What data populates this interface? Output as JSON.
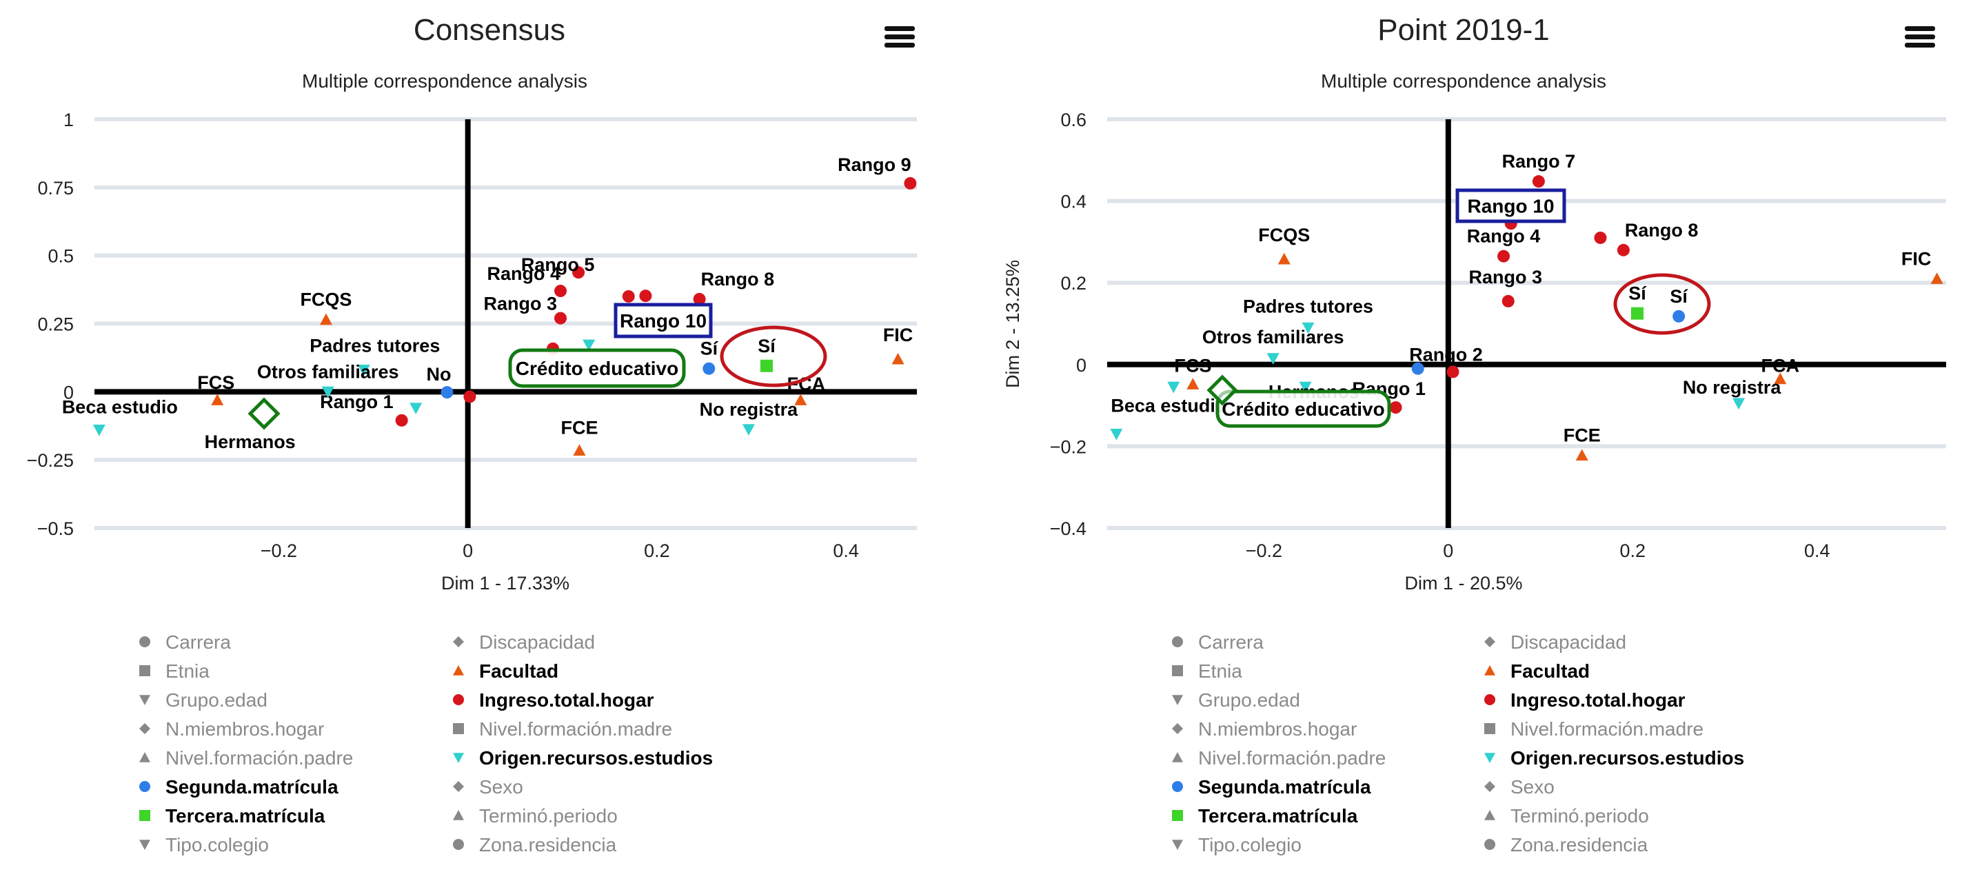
{
  "chart_data": [
    {
      "type": "scatter",
      "title": "Consensus",
      "subtitle": "Multiple correspondence analysis",
      "xlabel": "Dim 1 - 17.33%",
      "ylabel": "",
      "xlim": [
        -0.395,
        0.475
      ],
      "ylim": [
        -0.5,
        1.0
      ],
      "xticks": [
        -0.2,
        0,
        0.2,
        0.4
      ],
      "xtick_labels": [
        "−0.2",
        "0",
        "0.2",
        "0.4"
      ],
      "yticks": [
        -0.5,
        -0.25,
        0,
        0.25,
        0.5,
        0.75,
        1
      ],
      "ytick_labels": [
        "−0.5",
        "−0.25",
        "0",
        "0.25",
        "0.5",
        "0.75",
        "1"
      ],
      "grid": true,
      "points": [
        {
          "label": "Rango 9",
          "group": "Ingreso.total.hogar",
          "x": 0.468,
          "y": 0.765
        },
        {
          "label": "Rango 5",
          "group": "Ingreso.total.hogar",
          "x": 0.117,
          "y": 0.438
        },
        {
          "label": "Rango 4",
          "group": "Ingreso.total.hogar",
          "x": 0.098,
          "y": 0.37
        },
        {
          "label": "",
          "group": "Ingreso.total.hogar",
          "x": 0.17,
          "y": 0.35
        },
        {
          "label": "",
          "group": "Ingreso.total.hogar",
          "x": 0.188,
          "y": 0.352
        },
        {
          "label": "Rango 8",
          "group": "Ingreso.total.hogar",
          "x": 0.245,
          "y": 0.34
        },
        {
          "label": "Rango 3",
          "group": "Ingreso.total.hogar",
          "x": 0.098,
          "y": 0.27
        },
        {
          "label": "",
          "group": "Ingreso.total.hogar",
          "x": 0.09,
          "y": 0.158
        },
        {
          "label": "Rango 1",
          "group": "Ingreso.total.hogar",
          "x": -0.07,
          "y": -0.105
        },
        {
          "label": "",
          "group": "Ingreso.total.hogar",
          "x": 0.002,
          "y": -0.018
        },
        {
          "label": "FCQS",
          "group": "Facultad",
          "x": -0.15,
          "y": 0.265
        },
        {
          "label": "FCS",
          "group": "Facultad",
          "x": -0.265,
          "y": -0.03
        },
        {
          "label": "FIC",
          "group": "Facultad",
          "x": 0.455,
          "y": 0.12
        },
        {
          "label": "FCA",
          "group": "Facultad",
          "x": 0.352,
          "y": -0.03
        },
        {
          "label": "FCE",
          "group": "Facultad",
          "x": 0.118,
          "y": -0.215
        },
        {
          "label": "Padres tutores",
          "group": "Origen.recursos.estudios",
          "x": -0.11,
          "y": 0.08
        },
        {
          "label": "Otros familiares",
          "group": "Origen.recursos.estudios",
          "x": -0.148,
          "y": 0.0
        },
        {
          "label": "Beca estudio",
          "group": "Origen.recursos.estudios",
          "x": -0.39,
          "y": -0.14
        },
        {
          "label": "No registra",
          "group": "Origen.recursos.estudios",
          "x": 0.297,
          "y": -0.138
        },
        {
          "label": "Crédito educativo",
          "group": "Origen.recursos.estudios",
          "x": 0.128,
          "y": 0.172
        },
        {
          "label": "",
          "group": "Origen.recursos.estudios",
          "x": -0.055,
          "y": -0.06
        },
        {
          "label": "Sí",
          "group": "Segunda.matrícula",
          "x": 0.255,
          "y": 0.085
        },
        {
          "label": "No",
          "group": "Segunda.matrícula",
          "x": -0.022,
          "y": -0.002
        },
        {
          "label": "Sí",
          "group": "Tercera.matrícula",
          "x": 0.316,
          "y": 0.095
        },
        {
          "label": "Hermanos",
          "group": "N.miembros.hogar",
          "x": -0.21,
          "y": -0.085
        }
      ],
      "annotations": [
        {
          "type": "box",
          "label": "Rango 10",
          "color": "#1a1f9c"
        },
        {
          "type": "rounded-box",
          "label": "Crédito educativo",
          "color": "#137a13"
        },
        {
          "type": "ellipse",
          "color": "#c0161c"
        },
        {
          "type": "diamond",
          "color": "#137a13"
        }
      ]
    },
    {
      "type": "scatter",
      "title": "Point 2019-1",
      "subtitle": "Multiple correspondence analysis",
      "xlabel": "Dim 1 - 20.5%",
      "ylabel": "Dim 2 - 13.25%",
      "xlim": [
        -0.37,
        0.54
      ],
      "ylim": [
        -0.4,
        0.6
      ],
      "xticks": [
        -0.2,
        0,
        0.2,
        0.4
      ],
      "xtick_labels": [
        "−0.2",
        "0",
        "0.2",
        "0.4"
      ],
      "yticks": [
        -0.4,
        -0.2,
        0,
        0.2,
        0.4,
        0.6
      ],
      "ytick_labels": [
        "−0.4",
        "−0.2",
        "0",
        "0.2",
        "0.4",
        "0.6"
      ],
      "grid": true,
      "points": [
        {
          "label": "Rango 7",
          "group": "Ingreso.total.hogar",
          "x": 0.098,
          "y": 0.448
        },
        {
          "label": "",
          "group": "Ingreso.total.hogar",
          "x": 0.068,
          "y": 0.345
        },
        {
          "label": "Rango 4",
          "group": "Ingreso.total.hogar",
          "x": 0.06,
          "y": 0.265
        },
        {
          "label": "Rango 8",
          "group": "Ingreso.total.hogar",
          "x": 0.19,
          "y": 0.28
        },
        {
          "label": "",
          "group": "Ingreso.total.hogar",
          "x": 0.165,
          "y": 0.31
        },
        {
          "label": "Rango 3",
          "group": "Ingreso.total.hogar",
          "x": 0.065,
          "y": 0.155
        },
        {
          "label": "Rango 2",
          "group": "Ingreso.total.hogar",
          "x": 0.005,
          "y": -0.018
        },
        {
          "label": "Rango 1",
          "group": "Ingreso.total.hogar",
          "x": -0.057,
          "y": -0.105
        },
        {
          "label": "FCQS",
          "group": "Facultad",
          "x": -0.178,
          "y": 0.258
        },
        {
          "label": "FCS",
          "group": "Facultad",
          "x": -0.277,
          "y": -0.048
        },
        {
          "label": "FIC",
          "group": "Facultad",
          "x": 0.53,
          "y": 0.21
        },
        {
          "label": "FCA",
          "group": "Facultad",
          "x": 0.36,
          "y": -0.035
        },
        {
          "label": "FCE",
          "group": "Facultad",
          "x": 0.145,
          "y": -0.222
        },
        {
          "label": "Padres tutores",
          "group": "Origen.recursos.estudios",
          "x": -0.152,
          "y": 0.09
        },
        {
          "label": "Otros familiares",
          "group": "Origen.recursos.estudios",
          "x": -0.19,
          "y": 0.015
        },
        {
          "label": "Beca estudio",
          "group": "Origen.recursos.estudios",
          "x": -0.36,
          "y": -0.17
        },
        {
          "label": "No registra",
          "group": "Origen.recursos.estudios",
          "x": 0.315,
          "y": -0.095
        },
        {
          "label": "Crédito educativo",
          "group": "Origen.recursos.estudios",
          "x": -0.24,
          "y": -0.082
        },
        {
          "label": "",
          "group": "Origen.recursos.estudios",
          "x": -0.298,
          "y": -0.055
        },
        {
          "label": "",
          "group": "Origen.recursos.estudios",
          "x": -0.155,
          "y": -0.055
        },
        {
          "label": "Sí",
          "group": "Segunda.matrícula",
          "x": 0.25,
          "y": 0.118
        },
        {
          "label": "",
          "group": "Segunda.matrícula",
          "x": -0.033,
          "y": -0.01
        },
        {
          "label": "Sí",
          "group": "Tercera.matrícula",
          "x": 0.205,
          "y": 0.125
        },
        {
          "label": "Hermanos",
          "group": "N.miembros.hogar",
          "x": -0.24,
          "y": -0.065
        }
      ],
      "annotations": [
        {
          "type": "box",
          "label": "Rango 10",
          "color": "#1a1f9c"
        },
        {
          "type": "rounded-box",
          "label": "Crédito educativo",
          "color": "#137a13"
        },
        {
          "type": "ellipse",
          "color": "#c0161c"
        },
        {
          "type": "diamond",
          "color": "#137a13"
        }
      ]
    }
  ],
  "legend": {
    "items": [
      {
        "label": "Carrera",
        "shape": "circle",
        "active": false
      },
      {
        "label": "Discapacidad",
        "shape": "diamond",
        "active": false
      },
      {
        "label": "Etnia",
        "shape": "square",
        "active": false
      },
      {
        "label": "Facultad",
        "shape": "triangle",
        "active": true
      },
      {
        "label": "Grupo.edad",
        "shape": "triangle-down",
        "active": false
      },
      {
        "label": "Ingreso.total.hogar",
        "shape": "circle",
        "active": true
      },
      {
        "label": "N.miembros.hogar",
        "shape": "diamond",
        "active": false
      },
      {
        "label": "Nivel.formación.madre",
        "shape": "square",
        "active": false
      },
      {
        "label": "Nivel.formación.padre",
        "shape": "triangle",
        "active": false
      },
      {
        "label": "Origen.recursos.estudios",
        "shape": "triangle-down",
        "active": true
      },
      {
        "label": "Segunda.matrícula",
        "shape": "circle",
        "active": true
      },
      {
        "label": "Sexo",
        "shape": "diamond",
        "active": false
      },
      {
        "label": "Tercera.matrícula",
        "shape": "square",
        "active": true
      },
      {
        "label": "Terminó.periodo",
        "shape": "triangle",
        "active": false
      },
      {
        "label": "Tipo.colegio",
        "shape": "triangle-down",
        "active": false
      },
      {
        "label": "Zona.residencia",
        "shape": "circle",
        "active": false
      }
    ]
  },
  "colors": {
    "Facultad": "#e8570f",
    "Ingreso.total.hogar": "#d7141c",
    "Origen.recursos.estudios": "#2fd1cf",
    "Segunda.matrícula": "#2f7ee8",
    "Tercera.matrícula": "#3ed42a",
    "N.miembros.hogar": "#999999",
    "inactive": "#888888",
    "grid": "#dfe3ea",
    "axis": "#000000",
    "box_blue": "#1a1f9c",
    "box_green": "#137a13",
    "ellipse_red": "#c0161c"
  },
  "ui": {
    "menu_icon": "hamburger-menu-icon"
  }
}
